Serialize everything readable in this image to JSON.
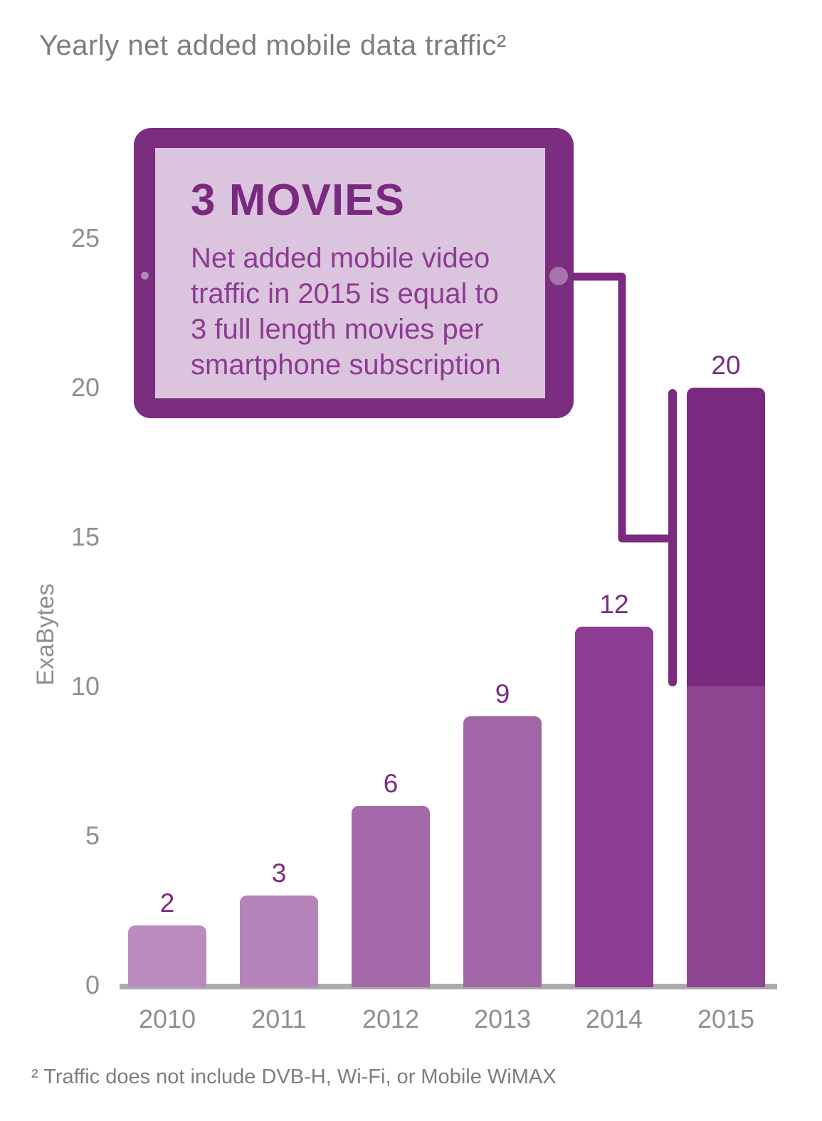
{
  "title": "Yearly net added mobile data traffic²",
  "callout": {
    "heading": "3 MOVIES",
    "body": "Net added mobile video\ntraffic in 2015 is equal to\n3 full length movies per\nsmartphone subscription"
  },
  "footnote": "² Traffic does not include DVB-H, Wi-Fi, or Mobile WiMAX",
  "chart_data": {
    "type": "bar",
    "title": "Yearly net added mobile data traffic",
    "ylabel": "ExaBytes",
    "xlabel": "",
    "categories": [
      "2010",
      "2011",
      "2012",
      "2013",
      "2014",
      "2015"
    ],
    "values": [
      2,
      3,
      6,
      9,
      12,
      20
    ],
    "data_labels": [
      "2",
      "3",
      "6",
      "9",
      "12",
      "20"
    ],
    "yticks": [
      "0",
      "5",
      "10",
      "15",
      "20",
      "25"
    ],
    "ylim": [
      0,
      27
    ],
    "grid": false,
    "legend": "none",
    "bar_colors": [
      "#BA8BBE",
      "#B583B9",
      "#A56AA9",
      "#A066A5",
      "#8C3C91",
      "#8D4592"
    ],
    "highlight": {
      "category": "2015",
      "from": 10,
      "to": 20,
      "color": "#7A2A7E"
    }
  },
  "colors": {
    "background": "#FFFFFF",
    "accent_dark_purple": "#7B2B80",
    "tablet_bezel": "#7B2D7F",
    "tablet_screen": "#DBC4DE",
    "callout_heading": "#7A2980",
    "callout_body": "#8D3B92",
    "axis_line": "#ACACAC",
    "label_gray": "#8F8F8F",
    "title_gray": "#7D7D7D",
    "value_label": "#7B2A80",
    "camera_dot_left": "#B286B6",
    "camera_dot_right": "#A673AA"
  }
}
